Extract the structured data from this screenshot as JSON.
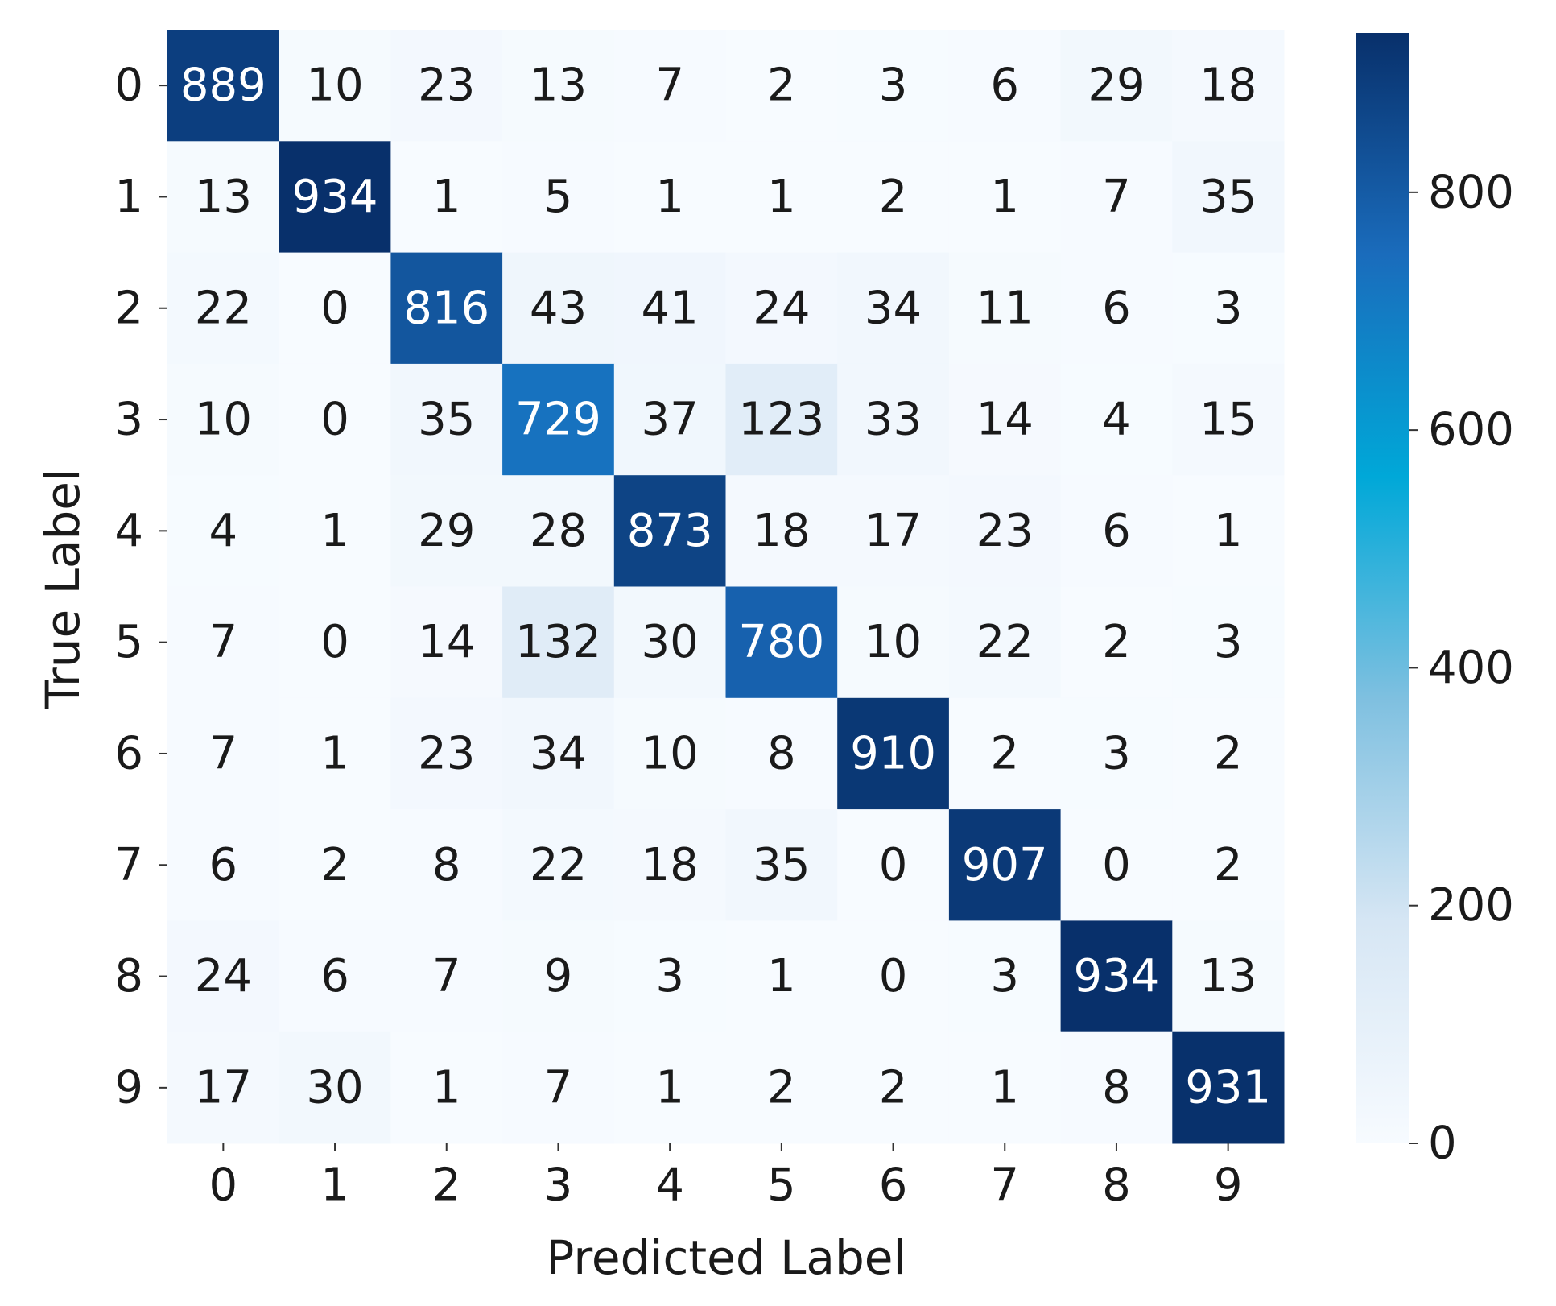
{
  "chart_data": {
    "type": "heatmap",
    "xlabel": "Predicted Label",
    "ylabel": "True Label",
    "x_categories": [
      "0",
      "1",
      "2",
      "3",
      "4",
      "5",
      "6",
      "7",
      "8",
      "9"
    ],
    "y_categories": [
      "0",
      "1",
      "2",
      "3",
      "4",
      "5",
      "6",
      "7",
      "8",
      "9"
    ],
    "values": [
      [
        889,
        10,
        23,
        13,
        7,
        2,
        3,
        6,
        29,
        18
      ],
      [
        13,
        934,
        1,
        5,
        1,
        1,
        2,
        1,
        7,
        35
      ],
      [
        22,
        0,
        816,
        43,
        41,
        24,
        34,
        11,
        6,
        3
      ],
      [
        10,
        0,
        35,
        729,
        37,
        123,
        33,
        14,
        4,
        15
      ],
      [
        4,
        1,
        29,
        28,
        873,
        18,
        17,
        23,
        6,
        1
      ],
      [
        7,
        0,
        14,
        132,
        30,
        780,
        10,
        22,
        2,
        3
      ],
      [
        7,
        1,
        23,
        34,
        10,
        8,
        910,
        2,
        3,
        2
      ],
      [
        6,
        2,
        8,
        22,
        18,
        35,
        0,
        907,
        0,
        2
      ],
      [
        24,
        6,
        7,
        9,
        3,
        1,
        0,
        3,
        934,
        13
      ],
      [
        17,
        30,
        1,
        7,
        1,
        2,
        2,
        1,
        8,
        931
      ]
    ],
    "colors": [
      "#f7fbff",
      "#d6e6f4",
      "#7fc0e0",
      "#00a8d8",
      "#1a6cbc",
      "#08306b"
    ],
    "colorbar_lim": [
      0,
      934
    ],
    "colorbar_ticks": [
      0,
      200,
      400,
      600,
      800
    ]
  }
}
